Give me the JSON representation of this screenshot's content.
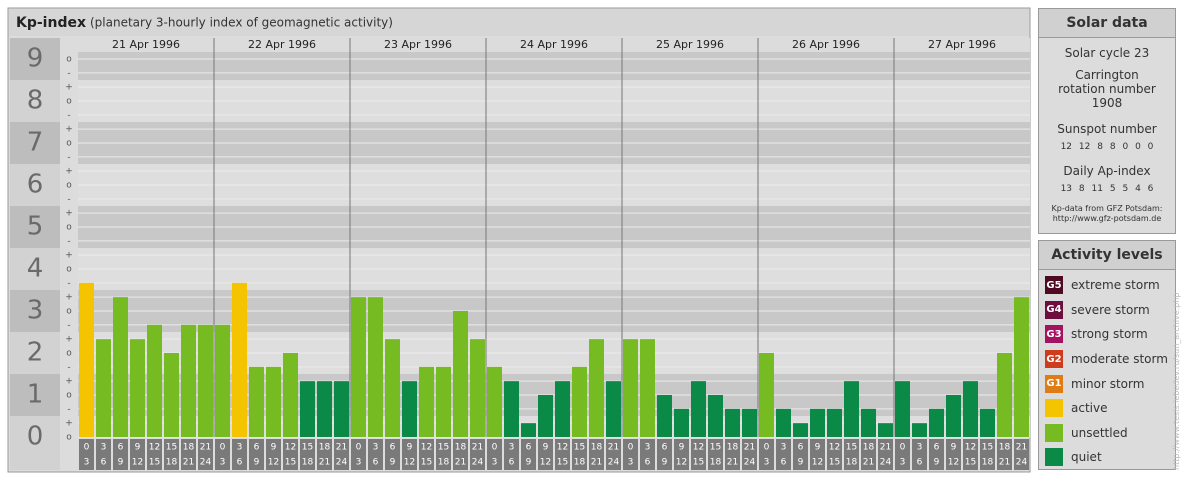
{
  "chart_data": {
    "type": "bar",
    "title": "Kp-index",
    "subtitle": "(planetary 3-hourly index of geomagnetic activity)",
    "days": [
      "21 Apr 1996",
      "22 Apr 1996",
      "23 Apr 1996",
      "24 Apr 1996",
      "25 Apr 1996",
      "26 Apr 1996",
      "27 Apr 1996"
    ],
    "hour_bins": [
      0,
      3,
      6,
      9,
      12,
      15,
      18,
      21,
      24
    ],
    "values": [
      3.67,
      2.33,
      3.33,
      2.33,
      2.67,
      2,
      2.67,
      2.67,
      2.67,
      3.67,
      1.67,
      1.67,
      2,
      1.33,
      1.33,
      1.33,
      3.33,
      3.33,
      2.33,
      1.33,
      1.67,
      1.67,
      3,
      2.33,
      1.67,
      1.33,
      0.33,
      1,
      1.33,
      1.67,
      2.33,
      1.33,
      2.33,
      2.33,
      1,
      0.67,
      1.33,
      1,
      0.67,
      0.67,
      2,
      0.67,
      0.33,
      0.67,
      0.67,
      1.33,
      0.67,
      0.33,
      1.33,
      0.33,
      0.67,
      1,
      1.33,
      0.67,
      2,
      3.33
    ],
    "colors": [
      "#f5c400",
      "#77bb22",
      "#77bb22",
      "#77bb22",
      "#77bb22",
      "#77bb22",
      "#77bb22",
      "#77bb22",
      "#77bb22",
      "#f5c400",
      "#77bb22",
      "#77bb22",
      "#77bb22",
      "#0a8a46",
      "#0a8a46",
      "#0a8a46",
      "#77bb22",
      "#77bb22",
      "#77bb22",
      "#0a8a46",
      "#77bb22",
      "#77bb22",
      "#77bb22",
      "#77bb22",
      "#77bb22",
      "#0a8a46",
      "#0a8a46",
      "#0a8a46",
      "#0a8a46",
      "#77bb22",
      "#77bb22",
      "#0a8a46",
      "#77bb22",
      "#77bb22",
      "#0a8a46",
      "#0a8a46",
      "#0a8a46",
      "#0a8a46",
      "#0a8a46",
      "#0a8a46",
      "#77bb22",
      "#0a8a46",
      "#0a8a46",
      "#0a8a46",
      "#0a8a46",
      "#0a8a46",
      "#0a8a46",
      "#0a8a46",
      "#0a8a46",
      "#0a8a46",
      "#0a8a46",
      "#0a8a46",
      "#0a8a46",
      "#0a8a46",
      "#77bb22",
      "#77bb22"
    ],
    "ylim": [
      0,
      9.5
    ],
    "yticks": [
      0,
      1,
      2,
      3,
      4,
      5,
      6,
      7,
      8,
      9
    ],
    "minor_ticks": [
      {
        "value": 0,
        "label": "o"
      },
      {
        "value": 0.33,
        "label": "+"
      },
      {
        "value": 0.67,
        "label": "-"
      },
      {
        "value": 1,
        "label": "o"
      },
      {
        "value": 1.33,
        "label": "+"
      },
      {
        "value": 1.67,
        "label": "-"
      },
      {
        "value": 2,
        "label": "o"
      },
      {
        "value": 2.33,
        "label": "+"
      },
      {
        "value": 2.67,
        "label": "-"
      },
      {
        "value": 3,
        "label": "o"
      },
      {
        "value": 3.33,
        "label": "+"
      },
      {
        "value": 3.67,
        "label": "-"
      },
      {
        "value": 4,
        "label": "o"
      },
      {
        "value": 4.33,
        "label": "+"
      },
      {
        "value": 4.67,
        "label": "-"
      },
      {
        "value": 5,
        "label": "o"
      },
      {
        "value": 5.33,
        "label": "+"
      },
      {
        "value": 5.67,
        "label": "-"
      },
      {
        "value": 6,
        "label": "o"
      },
      {
        "value": 6.33,
        "label": "+"
      },
      {
        "value": 6.67,
        "label": "-"
      },
      {
        "value": 7,
        "label": "o"
      },
      {
        "value": 7.33,
        "label": "+"
      },
      {
        "value": 7.67,
        "label": "-"
      },
      {
        "value": 8,
        "label": "o"
      },
      {
        "value": 8.33,
        "label": "+"
      },
      {
        "value": 8.67,
        "label": "-"
      },
      {
        "value": 9,
        "label": "o"
      }
    ],
    "grid": true
  },
  "solar_data": {
    "title": "Solar data",
    "cycle": "Solar cycle 23",
    "rotation": "Carrington rotation number 1908",
    "sunspot_label": "Sunspot number",
    "sunspot": [
      12,
      12,
      8,
      8,
      0,
      0,
      0
    ],
    "ap_label": "Daily Ap-index",
    "ap": [
      13,
      8,
      11,
      5,
      5,
      4,
      6
    ],
    "source": "Kp-data from GFZ Potsdam:",
    "source_url": "http://www.gfz-potsdam.de"
  },
  "activity_levels": {
    "title": "Activity levels",
    "items": [
      {
        "badge": "G5",
        "label": "extreme storm",
        "color": "#4d0a22"
      },
      {
        "badge": "G4",
        "label": "severe storm",
        "color": "#6e0e3e"
      },
      {
        "badge": "G3",
        "label": "strong storm",
        "color": "#a3135f"
      },
      {
        "badge": "G2",
        "label": "moderate storm",
        "color": "#cf3b1d"
      },
      {
        "badge": "G1",
        "label": "minor storm",
        "color": "#e07c14"
      },
      {
        "label": "active",
        "color": "#f5c400"
      },
      {
        "label": "unsettled",
        "color": "#77bb22"
      },
      {
        "label": "quiet",
        "color": "#0a8a46"
      }
    ]
  },
  "watermark": "http://www.tesis.lebedev.ru/sun_archive.php"
}
